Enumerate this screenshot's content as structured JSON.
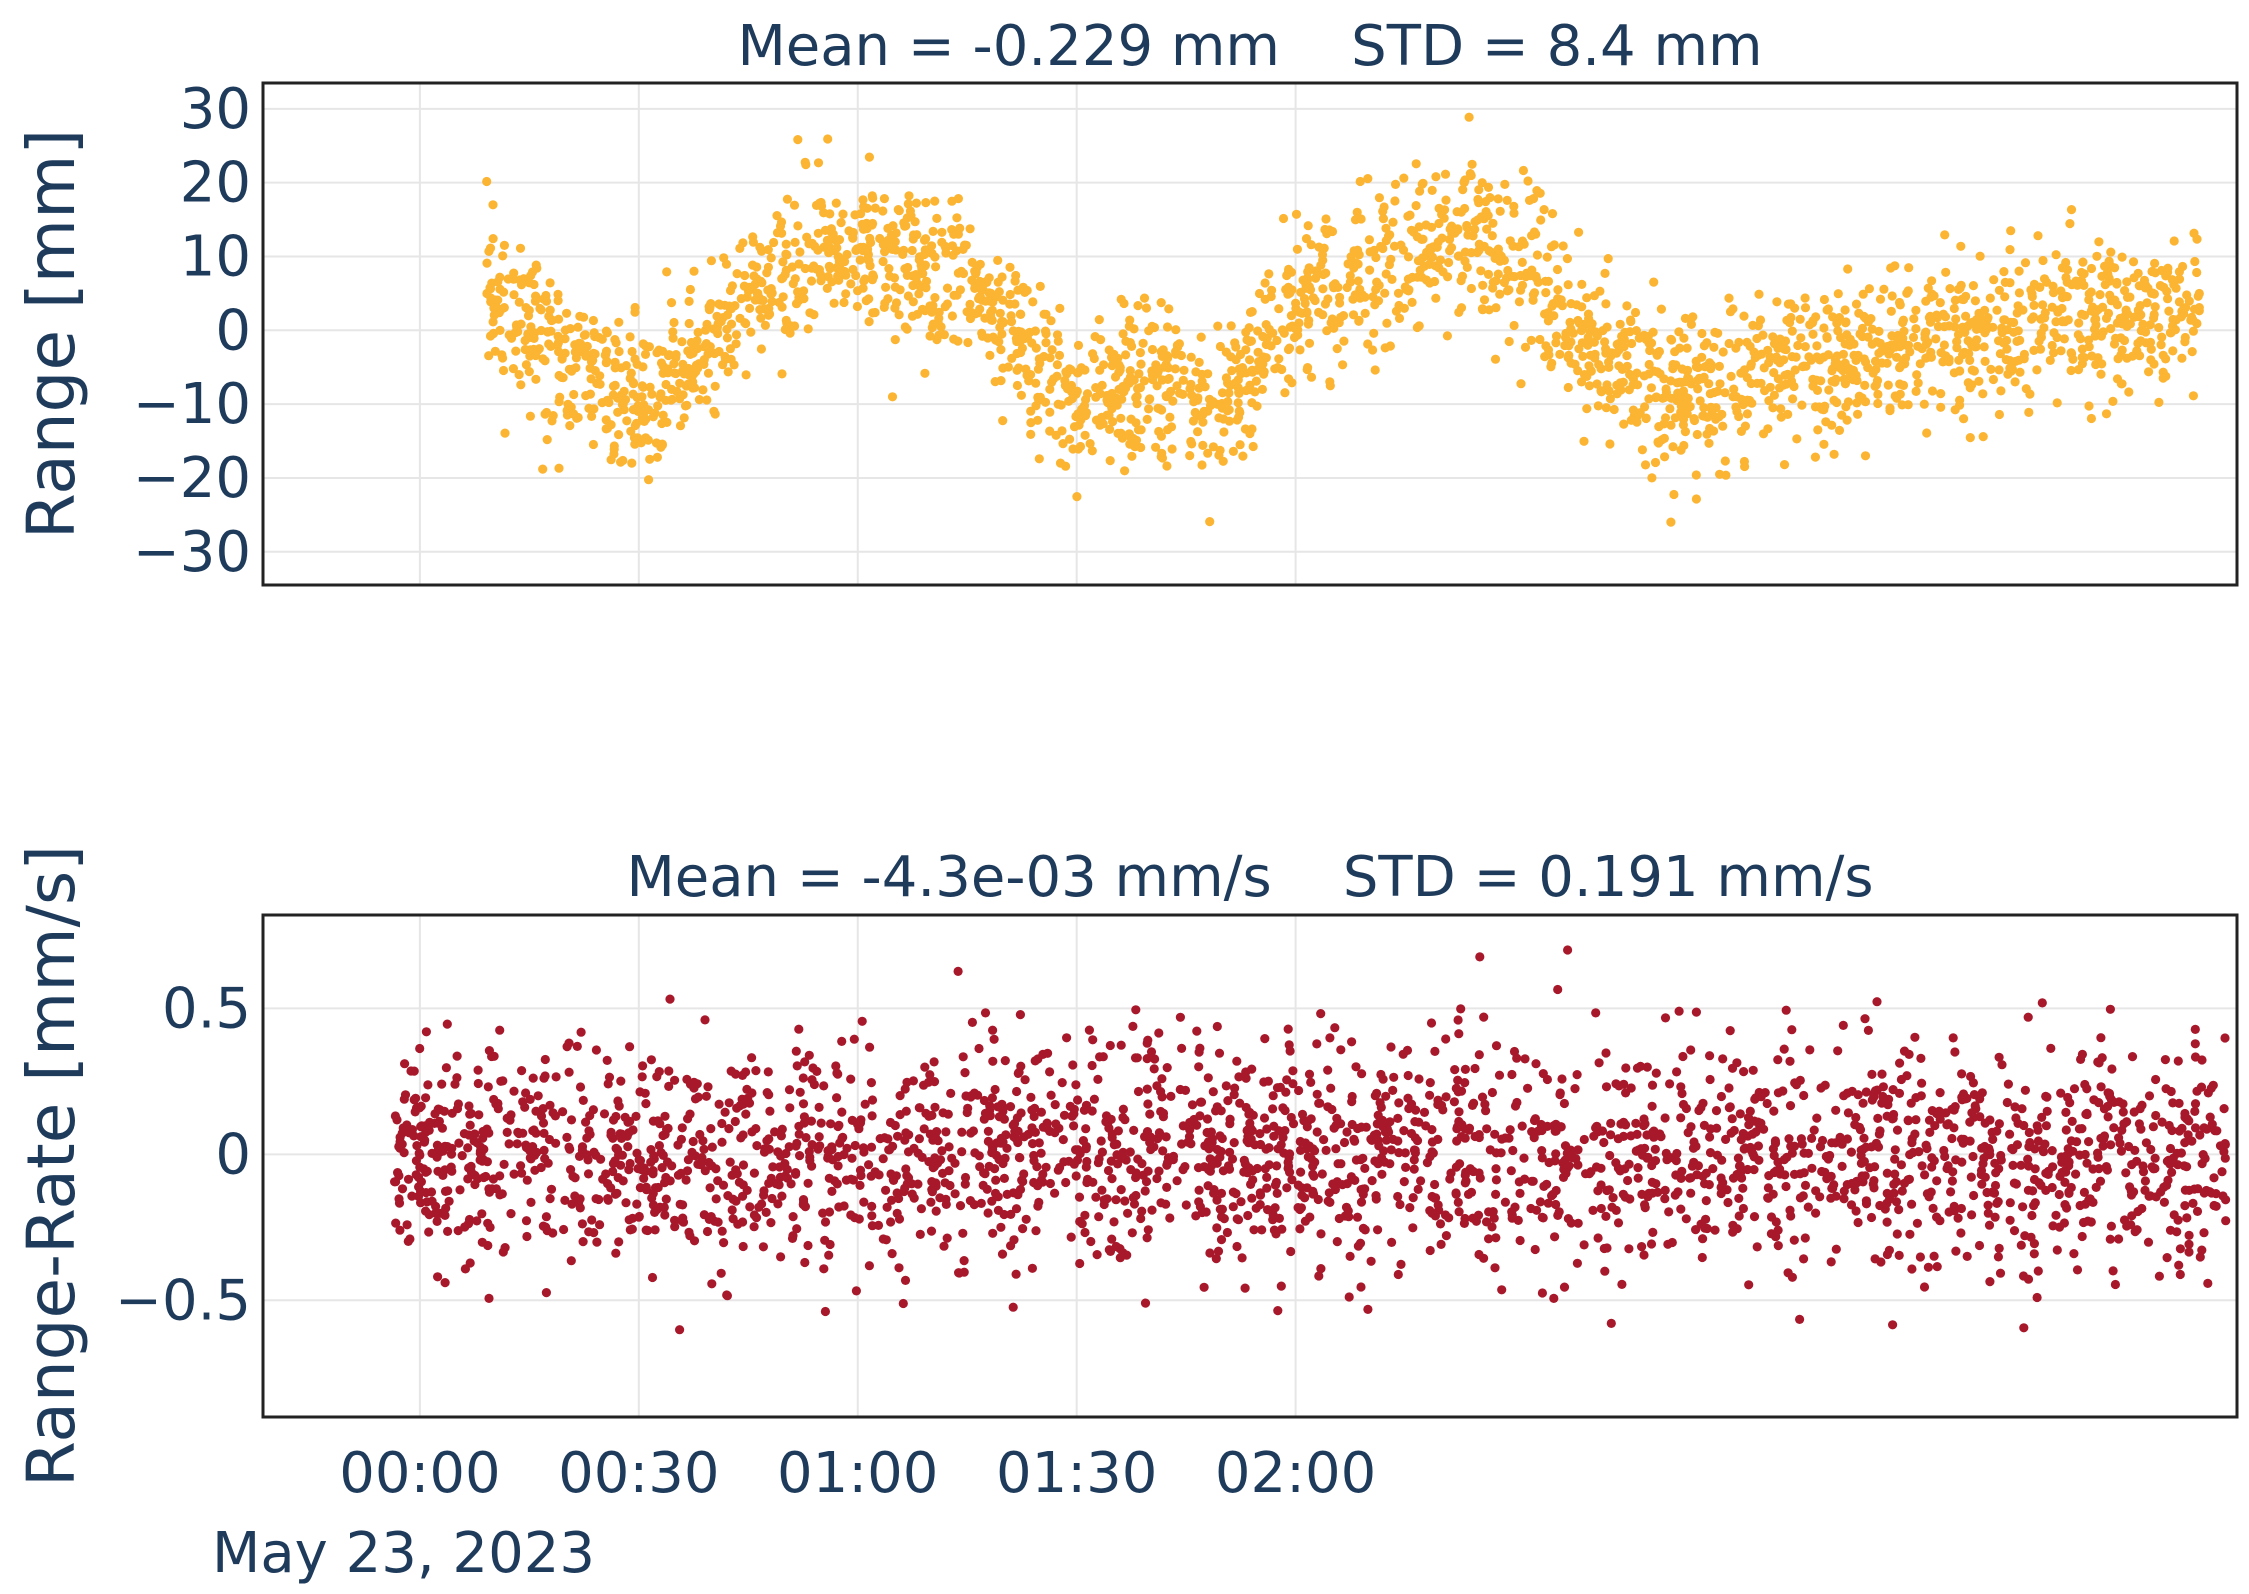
{
  "chart_data": [
    {
      "type": "scatter",
      "title": "Mean = -0.229 mm    STD = 8.4 mm",
      "ylabel": "Range [mm]",
      "ylim": [
        -34.5,
        33.5
      ],
      "yticks": [
        30,
        20,
        10,
        0,
        -10,
        -20,
        -30
      ],
      "ytick_labels": [
        "30",
        "20",
        "10",
        "0",
        "−10",
        "−20",
        "−30"
      ],
      "xlim_minutes": [
        -21.5,
        249
      ],
      "x_range_minutes": [
        9,
        244
      ],
      "color": "#fbb532",
      "n_points": 2600,
      "sample_series": [
        {
          "t": 10,
          "v": 6
        },
        {
          "t": 20,
          "v": -5
        },
        {
          "t": 32,
          "v": -10
        },
        {
          "t": 45,
          "v": 4
        },
        {
          "t": 55,
          "v": 12
        },
        {
          "t": 75,
          "v": 5
        },
        {
          "t": 90,
          "v": -10
        },
        {
          "t": 100,
          "v": -7
        },
        {
          "t": 110,
          "v": -11
        },
        {
          "t": 120,
          "v": 4
        },
        {
          "t": 145,
          "v": 13
        },
        {
          "t": 170,
          "v": -9
        },
        {
          "t": 200,
          "v": -3
        },
        {
          "t": 230,
          "v": 2
        }
      ]
    },
    {
      "type": "scatter",
      "title": "Mean = -4.3e-03 mm/s    STD = 0.191 mm/s",
      "ylabel": "Range-Rate [mm/s]",
      "ylim": [
        -0.9,
        0.82
      ],
      "yticks": [
        0.5,
        0,
        -0.5
      ],
      "ytick_labels": [
        "0.5",
        "0",
        "−0.5"
      ],
      "xlim_minutes": [
        -21.5,
        249
      ],
      "x_range_minutes": [
        -3.5,
        247.5
      ],
      "color": "#a8182b",
      "n_points": 2600,
      "mean": -0.0043,
      "std": 0.191
    }
  ],
  "x_axis": {
    "tick_minutes": [
      0,
      30,
      60,
      90,
      120
    ],
    "tick_labels": [
      "00:00",
      "00:30",
      "01:00",
      "01:30",
      "02:00"
    ],
    "date_label": "May 23, 2023"
  }
}
